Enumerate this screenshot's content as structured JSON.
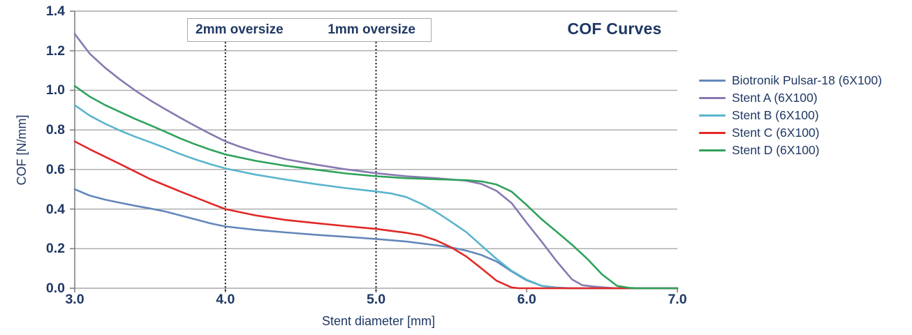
{
  "chart_data": {
    "type": "line",
    "title": "COF Curves",
    "xlabel": "Stent diameter [mm]",
    "ylabel": "COF [N/mm]",
    "xlim": [
      3.0,
      7.0
    ],
    "ylim": [
      0.0,
      1.4
    ],
    "x_ticks": [
      "3.0",
      "4.0",
      "5.0",
      "6.0",
      "7.0"
    ],
    "y_ticks": [
      "0.0",
      "0.2",
      "0.4",
      "0.6",
      "0.8",
      "1.0",
      "1.2",
      "1.4"
    ],
    "grid": "horizontal",
    "legend_position": "right",
    "colors": {
      "text": "#1f3864",
      "grid": "#a9a9a9",
      "axis": "#808080",
      "annotation_line": "#1a1a1a"
    },
    "annotations": [
      {
        "label": "2mm oversize",
        "x": 4.0,
        "line_style": "dotted"
      },
      {
        "label": "1mm oversize",
        "x": 5.0,
        "line_style": "dotted"
      }
    ],
    "series": [
      {
        "key": "pulsar-18",
        "name": "Biotronik Pulsar-18 (6X100)",
        "color": "#6287b9",
        "points": [
          [
            3.0,
            0.5
          ],
          [
            3.1,
            0.468
          ],
          [
            3.2,
            0.448
          ],
          [
            3.3,
            0.432
          ],
          [
            3.4,
            0.417
          ],
          [
            3.5,
            0.403
          ],
          [
            3.6,
            0.388
          ],
          [
            3.7,
            0.368
          ],
          [
            3.8,
            0.348
          ],
          [
            3.9,
            0.328
          ],
          [
            4.0,
            0.312
          ],
          [
            4.2,
            0.295
          ],
          [
            4.4,
            0.282
          ],
          [
            4.6,
            0.27
          ],
          [
            4.8,
            0.26
          ],
          [
            5.0,
            0.249
          ],
          [
            5.2,
            0.236
          ],
          [
            5.4,
            0.217
          ],
          [
            5.5,
            0.206
          ],
          [
            5.6,
            0.19
          ],
          [
            5.7,
            0.168
          ],
          [
            5.8,
            0.135
          ],
          [
            5.9,
            0.085
          ],
          [
            6.0,
            0.04
          ],
          [
            6.1,
            0.012
          ],
          [
            6.2,
            0.003
          ],
          [
            6.3,
            0.0
          ],
          [
            7.0,
            0.0
          ]
        ]
      },
      {
        "key": "stent-a",
        "name": "Stent A (6X100)",
        "color": "#8878b0",
        "points": [
          [
            3.0,
            1.285
          ],
          [
            3.05,
            1.235
          ],
          [
            3.1,
            1.185
          ],
          [
            3.2,
            1.115
          ],
          [
            3.3,
            1.055
          ],
          [
            3.4,
            1.0
          ],
          [
            3.5,
            0.95
          ],
          [
            3.6,
            0.905
          ],
          [
            3.7,
            0.862
          ],
          [
            3.8,
            0.82
          ],
          [
            3.9,
            0.78
          ],
          [
            4.0,
            0.742
          ],
          [
            4.1,
            0.714
          ],
          [
            4.2,
            0.69
          ],
          [
            4.4,
            0.652
          ],
          [
            4.6,
            0.625
          ],
          [
            4.8,
            0.601
          ],
          [
            5.0,
            0.581
          ],
          [
            5.2,
            0.566
          ],
          [
            5.4,
            0.556
          ],
          [
            5.6,
            0.543
          ],
          [
            5.7,
            0.527
          ],
          [
            5.8,
            0.492
          ],
          [
            5.9,
            0.43
          ],
          [
            6.0,
            0.33
          ],
          [
            6.1,
            0.235
          ],
          [
            6.2,
            0.135
          ],
          [
            6.3,
            0.045
          ],
          [
            6.37,
            0.015
          ],
          [
            6.45,
            0.008
          ],
          [
            6.55,
            0.002
          ],
          [
            6.6,
            0.0
          ],
          [
            7.0,
            0.0
          ]
        ]
      },
      {
        "key": "stent-b",
        "name": "Stent B (6X100)",
        "color": "#59b5cd",
        "points": [
          [
            3.0,
            0.925
          ],
          [
            3.1,
            0.872
          ],
          [
            3.2,
            0.832
          ],
          [
            3.3,
            0.797
          ],
          [
            3.4,
            0.766
          ],
          [
            3.5,
            0.738
          ],
          [
            3.6,
            0.709
          ],
          [
            3.7,
            0.678
          ],
          [
            3.8,
            0.651
          ],
          [
            3.9,
            0.627
          ],
          [
            4.0,
            0.605
          ],
          [
            4.2,
            0.574
          ],
          [
            4.4,
            0.549
          ],
          [
            4.6,
            0.526
          ],
          [
            4.8,
            0.506
          ],
          [
            5.0,
            0.489
          ],
          [
            5.1,
            0.479
          ],
          [
            5.2,
            0.461
          ],
          [
            5.3,
            0.427
          ],
          [
            5.4,
            0.385
          ],
          [
            5.5,
            0.335
          ],
          [
            5.6,
            0.283
          ],
          [
            5.7,
            0.215
          ],
          [
            5.8,
            0.148
          ],
          [
            5.9,
            0.088
          ],
          [
            6.0,
            0.043
          ],
          [
            6.1,
            0.012
          ],
          [
            6.2,
            0.002
          ],
          [
            6.25,
            0.0
          ],
          [
            7.0,
            0.0
          ]
        ]
      },
      {
        "key": "stent-c",
        "name": "Stent C (6X100)",
        "color": "#e12826",
        "points": [
          [
            3.0,
            0.742
          ],
          [
            3.1,
            0.702
          ],
          [
            3.2,
            0.665
          ],
          [
            3.3,
            0.628
          ],
          [
            3.4,
            0.59
          ],
          [
            3.5,
            0.552
          ],
          [
            3.6,
            0.52
          ],
          [
            3.7,
            0.489
          ],
          [
            3.8,
            0.459
          ],
          [
            3.9,
            0.429
          ],
          [
            4.0,
            0.4
          ],
          [
            4.2,
            0.368
          ],
          [
            4.4,
            0.345
          ],
          [
            4.6,
            0.329
          ],
          [
            4.8,
            0.314
          ],
          [
            5.0,
            0.3
          ],
          [
            5.1,
            0.29
          ],
          [
            5.2,
            0.28
          ],
          [
            5.3,
            0.267
          ],
          [
            5.4,
            0.242
          ],
          [
            5.5,
            0.206
          ],
          [
            5.6,
            0.16
          ],
          [
            5.7,
            0.1
          ],
          [
            5.8,
            0.038
          ],
          [
            5.9,
            0.004
          ],
          [
            5.95,
            0.0
          ],
          [
            7.0,
            0.0
          ]
        ]
      },
      {
        "key": "stent-d",
        "name": "Stent D (6X100)",
        "color": "#2ea25b",
        "points": [
          [
            3.0,
            1.022
          ],
          [
            3.1,
            0.968
          ],
          [
            3.2,
            0.926
          ],
          [
            3.3,
            0.891
          ],
          [
            3.4,
            0.856
          ],
          [
            3.5,
            0.824
          ],
          [
            3.6,
            0.791
          ],
          [
            3.7,
            0.757
          ],
          [
            3.8,
            0.727
          ],
          [
            3.9,
            0.7
          ],
          [
            4.0,
            0.676
          ],
          [
            4.2,
            0.644
          ],
          [
            4.4,
            0.619
          ],
          [
            4.6,
            0.599
          ],
          [
            4.8,
            0.58
          ],
          [
            5.0,
            0.566
          ],
          [
            5.2,
            0.556
          ],
          [
            5.4,
            0.551
          ],
          [
            5.6,
            0.546
          ],
          [
            5.7,
            0.54
          ],
          [
            5.8,
            0.524
          ],
          [
            5.9,
            0.488
          ],
          [
            6.0,
            0.42
          ],
          [
            6.1,
            0.348
          ],
          [
            6.2,
            0.285
          ],
          [
            6.3,
            0.22
          ],
          [
            6.4,
            0.15
          ],
          [
            6.5,
            0.07
          ],
          [
            6.6,
            0.012
          ],
          [
            6.68,
            0.002
          ],
          [
            6.75,
            0.0
          ],
          [
            7.0,
            0.0
          ]
        ]
      }
    ]
  }
}
